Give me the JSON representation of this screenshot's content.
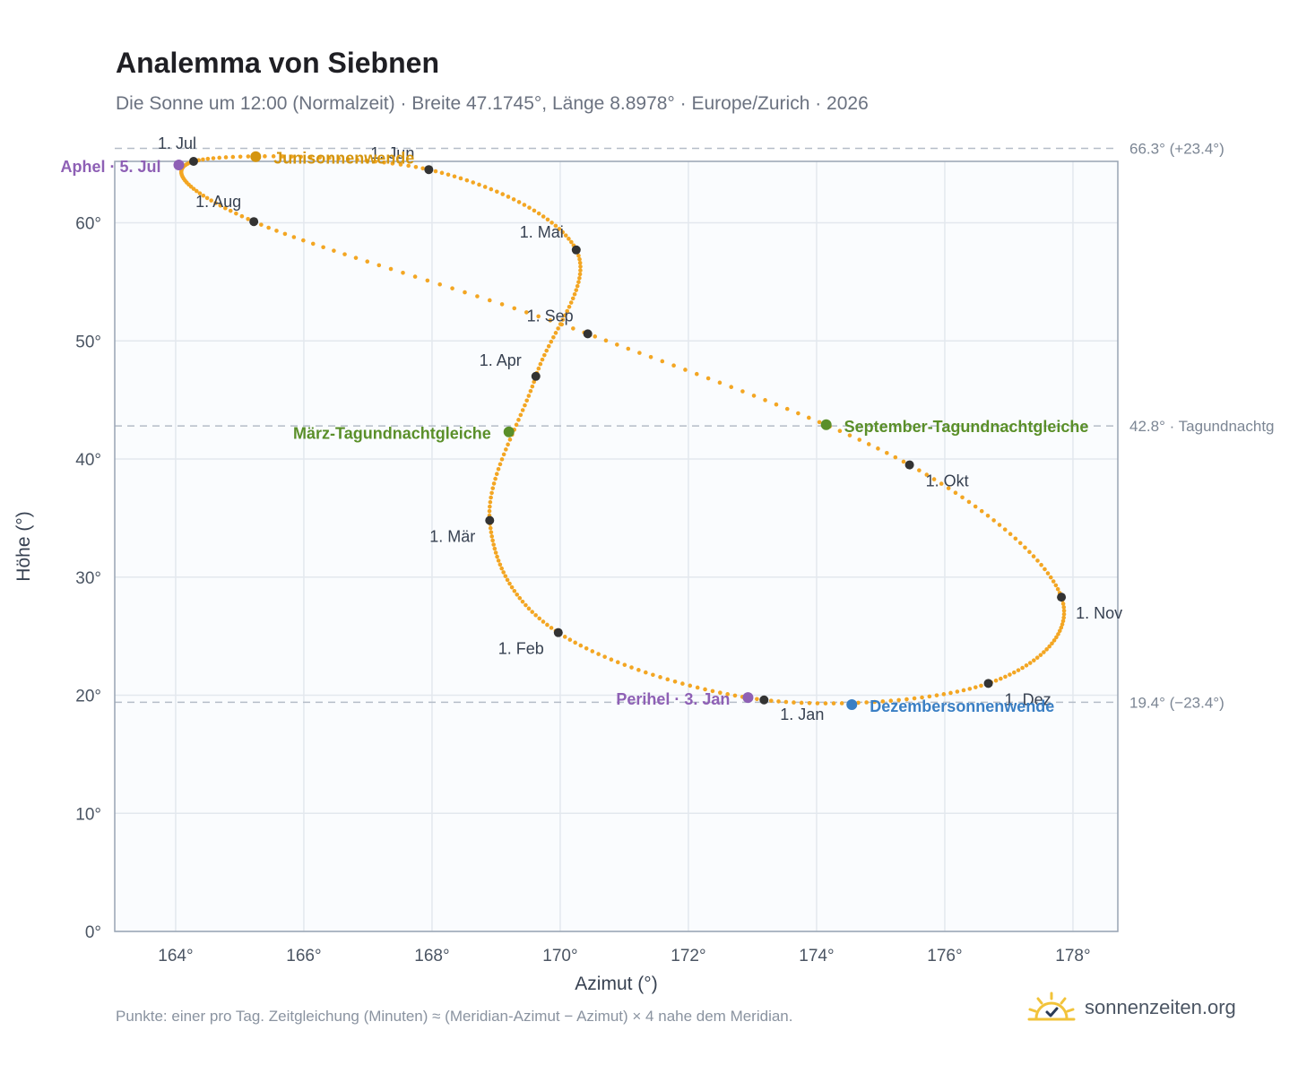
{
  "header": {
    "title": "Analemma von Siebnen",
    "subtitle": "Die Sonne um 12:00 (Normalzeit) · Breite 47.1745°, Länge 8.8978° · Europe/Zurich · 2026"
  },
  "footer": {
    "note": "Punkte: einer pro Tag. Zeitgleichung (Minuten) ≈ (Meridian-Azimut − Azimut) × 4 nahe dem Meridian.",
    "brand": "sonnenzeiten.org",
    "brand_icon": "sun-check-icon"
  },
  "chart_data": {
    "type": "scatter",
    "title": "Analemma von Siebnen",
    "xlabel": "Azimut (°)",
    "ylabel": "Höhe (°)",
    "xlim": [
      163.05,
      178.7
    ],
    "ylim": [
      0,
      65.2
    ],
    "xticks": [
      164,
      166,
      168,
      170,
      172,
      174,
      176,
      178
    ],
    "xtick_labels": [
      "164°",
      "166°",
      "168°",
      "170°",
      "172°",
      "174°",
      "176°",
      "178°"
    ],
    "yticks": [
      0,
      10,
      20,
      30,
      40,
      50,
      60
    ],
    "ytick_labels": [
      "0°",
      "10°",
      "20°",
      "30°",
      "40°",
      "50°",
      "60°"
    ],
    "grid": true,
    "colors": {
      "curve": "#f3a623",
      "month": "#333333",
      "solstice_june": "#d4950f",
      "solstice_december": "#3a7fc4",
      "equinox": "#5a8f29",
      "apsis": "#8e60b5",
      "reference": "#b5bdc8",
      "plot_bg": "#fafcfe",
      "frame": "#98a4b3"
    },
    "reference_lines": [
      {
        "y": 66.3,
        "label": "66.3° (+23.4°)"
      },
      {
        "y": 42.8,
        "label": "42.8° · Tagundnachtg"
      },
      {
        "y": 19.4,
        "label": "19.4° (−23.4°)"
      }
    ],
    "months": [
      {
        "label": "1. Jan",
        "az": 173.18,
        "alt": 19.6
      },
      {
        "label": "1. Feb",
        "az": 169.97,
        "alt": 25.3
      },
      {
        "label": "1. Mär",
        "az": 168.9,
        "alt": 34.8
      },
      {
        "label": "1. Apr",
        "az": 169.62,
        "alt": 47.0
      },
      {
        "label": "1. Mai",
        "az": 170.25,
        "alt": 57.7
      },
      {
        "label": "1. Jun",
        "az": 167.95,
        "alt": 64.5
      },
      {
        "label": "1. Jul",
        "az": 164.28,
        "alt": 65.2
      },
      {
        "label": "1. Aug",
        "az": 165.22,
        "alt": 60.1
      },
      {
        "label": "1. Sep",
        "az": 170.43,
        "alt": 50.6
      },
      {
        "label": "1. Okt",
        "az": 175.45,
        "alt": 39.5
      },
      {
        "label": "1. Nov",
        "az": 177.82,
        "alt": 28.3
      },
      {
        "label": "1. Dez",
        "az": 176.68,
        "alt": 21.0
      }
    ],
    "events": [
      {
        "label": "Junisonnenwende",
        "az": 165.25,
        "alt": 65.6,
        "kind": "solstice_june"
      },
      {
        "label": "Dezembersonnenwende",
        "az": 174.55,
        "alt": 19.2,
        "kind": "solstice_december"
      },
      {
        "label": "März-Tagundnachtgleiche",
        "az": 169.2,
        "alt": 42.3,
        "kind": "equinox"
      },
      {
        "label": "September-Tagundnachtgleiche",
        "az": 174.15,
        "alt": 42.9,
        "kind": "equinox"
      },
      {
        "label": "Aphel · 5. Jul",
        "az": 164.05,
        "alt": 64.9,
        "kind": "apsis"
      },
      {
        "label": "Perihel · 3. Jan",
        "az": 172.93,
        "alt": 19.8,
        "kind": "apsis"
      }
    ],
    "curve_points": 365
  }
}
